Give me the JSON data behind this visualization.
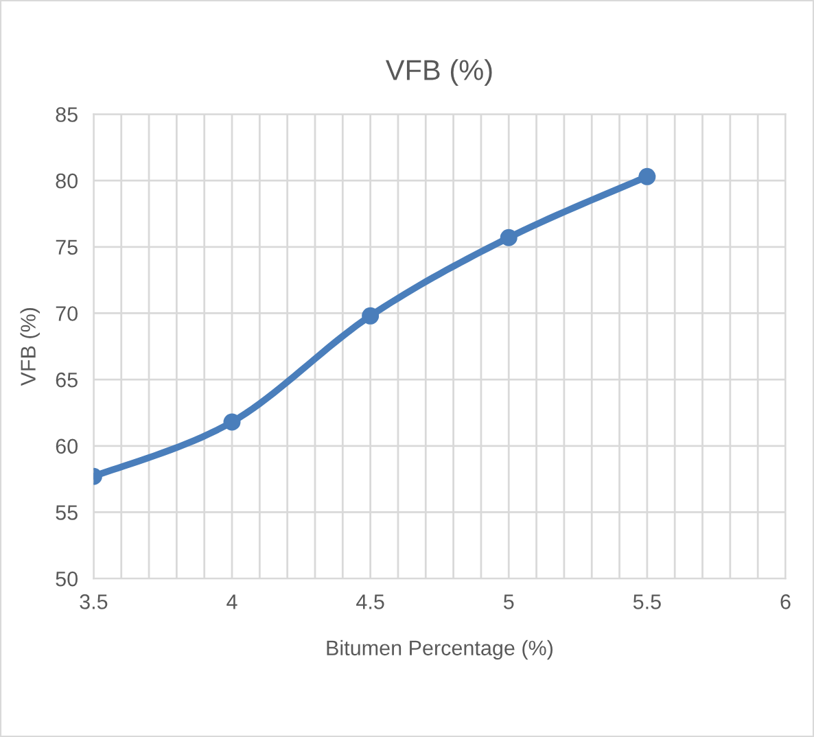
{
  "chart_data": {
    "type": "line",
    "title": "VFB (%)",
    "xlabel": "Bitumen Percentage (%)",
    "ylabel": "VFB (%)",
    "x": [
      3.5,
      4,
      4.5,
      5,
      5.5
    ],
    "series": [
      {
        "color": "#4a7ebb",
        "values": [
          57.7,
          61.8,
          69.8,
          75.7,
          80.3
        ]
      }
    ],
    "xlim": [
      3.5,
      6
    ],
    "ylim": [
      50,
      85
    ],
    "xticks": [
      3.5,
      {
        "value": 3.6,
        "label": null
      },
      {
        "value": 3.7,
        "label": null
      },
      {
        "value": 3.8,
        "label": null
      },
      {
        "value": 3.9,
        "label": null
      },
      4,
      {
        "value": 4.1,
        "label": null
      },
      {
        "value": 4.2,
        "label": null
      },
      {
        "value": 4.3,
        "label": null
      },
      {
        "value": 4.4,
        "label": null
      },
      4.5,
      {
        "value": 4.6,
        "label": null
      },
      {
        "value": 4.7,
        "label": null
      },
      {
        "value": 4.8,
        "label": null
      },
      {
        "value": 4.9,
        "label": null
      },
      5,
      {
        "value": 5.1,
        "label": null
      },
      {
        "value": 5.2,
        "label": null
      },
      {
        "value": 5.3,
        "label": null
      },
      {
        "value": 5.4,
        "label": null
      },
      5.5,
      {
        "value": 5.6,
        "label": null
      },
      {
        "value": 5.7,
        "label": null
      },
      {
        "value": 5.8,
        "label": null
      },
      {
        "value": 5.9,
        "label": null
      },
      6
    ],
    "yticks": [
      50,
      55,
      60,
      65,
      70,
      75,
      80,
      85
    ],
    "grid": true,
    "marker": "circle",
    "line_style": "solid"
  }
}
